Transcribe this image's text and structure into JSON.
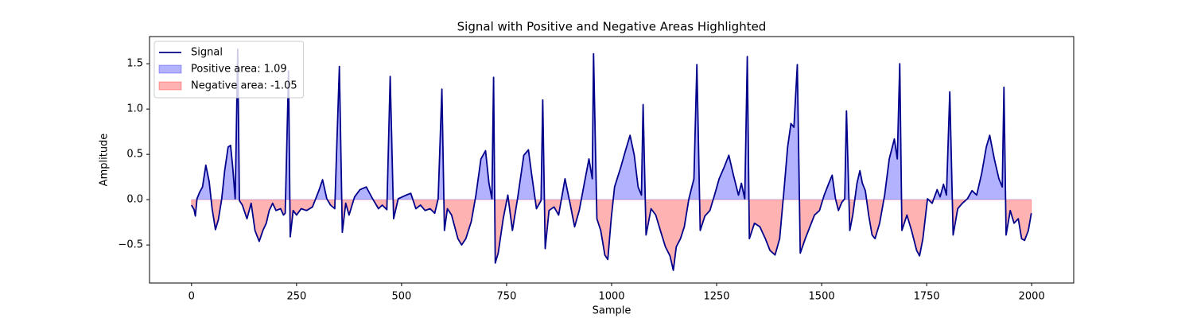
{
  "chart_data": {
    "type": "line",
    "title": "Signal with Positive and Negative Areas Highlighted",
    "xlabel": "Sample",
    "ylabel": "Amplitude",
    "x": [
      0,
      6,
      9,
      13,
      19,
      26,
      34,
      42,
      49,
      57,
      64,
      72,
      79,
      87,
      93,
      98,
      104,
      110,
      114,
      121,
      132,
      142,
      151,
      161,
      170,
      178,
      185,
      193,
      201,
      212,
      219,
      223,
      231,
      235,
      242,
      250,
      261,
      274,
      288,
      303,
      312,
      322,
      331,
      341,
      352,
      359,
      367,
      375,
      388,
      401,
      416,
      431,
      445,
      454,
      465,
      473,
      481,
      492,
      511,
      522,
      534,
      545,
      556,
      568,
      579,
      587,
      596,
      602,
      609,
      619,
      634,
      643,
      653,
      666,
      677,
      689,
      700,
      708,
      715,
      719,
      723,
      730,
      742,
      753,
      764,
      776,
      791,
      802,
      810,
      821,
      832,
      836,
      842,
      851,
      863,
      874,
      889,
      901,
      912,
      923,
      935,
      946,
      954,
      957,
      965,
      974,
      984,
      991,
      999,
      1007,
      1022,
      1033,
      1044,
      1054,
      1063,
      1071,
      1075,
      1082,
      1094,
      1105,
      1116,
      1128,
      1139,
      1147,
      1154,
      1164,
      1173,
      1184,
      1196,
      1203,
      1211,
      1222,
      1234,
      1245,
      1256,
      1268,
      1279,
      1290,
      1302,
      1309,
      1317,
      1323,
      1328,
      1340,
      1353,
      1366,
      1377,
      1389,
      1400,
      1411,
      1419,
      1427,
      1434,
      1442,
      1449,
      1461,
      1472,
      1483,
      1495,
      1506,
      1517,
      1525,
      1533,
      1540,
      1548,
      1555,
      1559,
      1567,
      1574,
      1584,
      1591,
      1597,
      1604,
      1612,
      1620,
      1627,
      1638,
      1650,
      1661,
      1673,
      1680,
      1686,
      1691,
      1703,
      1714,
      1726,
      1733,
      1741,
      1752,
      1763,
      1775,
      1782,
      1790,
      1797,
      1805,
      1813,
      1824,
      1835,
      1847,
      1858,
      1869,
      1881,
      1892,
      1900,
      1911,
      1922,
      1930,
      1934,
      1939,
      1949,
      1958,
      1968,
      1976,
      1983,
      1992,
      1999
    ],
    "series": [
      {
        "name": "Signal",
        "color": "#00008b",
        "values": [
          -0.06,
          -0.11,
          -0.18,
          0.01,
          0.08,
          0.14,
          0.38,
          0.2,
          -0.1,
          -0.33,
          -0.22,
          0.01,
          0.32,
          0.58,
          0.6,
          0.36,
          0.01,
          1.66,
          -0.01,
          -0.06,
          -0.21,
          -0.04,
          -0.34,
          -0.46,
          -0.34,
          -0.26,
          -0.12,
          -0.04,
          -0.12,
          -0.1,
          -0.17,
          -0.15,
          1.42,
          -0.41,
          -0.12,
          -0.17,
          -0.1,
          -0.12,
          -0.08,
          0.1,
          0.22,
          0.01,
          -0.06,
          -0.1,
          1.47,
          -0.36,
          -0.04,
          -0.17,
          0.03,
          0.11,
          0.14,
          0.01,
          -0.1,
          -0.06,
          -0.11,
          1.36,
          -0.21,
          0.01,
          0.05,
          0.07,
          -0.1,
          -0.06,
          -0.12,
          -0.1,
          -0.15,
          0.01,
          1.22,
          -0.34,
          -0.1,
          -0.17,
          -0.43,
          -0.5,
          -0.43,
          -0.24,
          0.05,
          0.45,
          0.54,
          0.18,
          0.01,
          1.35,
          -0.7,
          -0.59,
          -0.21,
          0.05,
          -0.34,
          0.01,
          0.49,
          0.55,
          0.27,
          -0.1,
          -0.01,
          1.1,
          -0.54,
          -0.12,
          -0.08,
          -0.17,
          0.23,
          -0.04,
          -0.3,
          -0.12,
          0.18,
          0.45,
          0.23,
          1.61,
          -0.21,
          -0.34,
          -0.61,
          -0.66,
          -0.21,
          0.14,
          0.36,
          0.54,
          0.71,
          0.49,
          0.14,
          0.05,
          1.05,
          -0.39,
          -0.1,
          -0.17,
          -0.34,
          -0.52,
          -0.62,
          -0.78,
          -0.52,
          -0.43,
          -0.3,
          0.01,
          0.23,
          1.49,
          -0.34,
          -0.18,
          -0.12,
          0.05,
          0.23,
          0.36,
          0.49,
          0.27,
          0.05,
          0.18,
          0.01,
          1.58,
          -0.43,
          -0.26,
          -0.3,
          -0.43,
          -0.56,
          -0.61,
          -0.43,
          0.14,
          0.58,
          0.84,
          0.8,
          1.49,
          -0.59,
          -0.43,
          -0.3,
          -0.17,
          -0.12,
          0.05,
          0.18,
          0.27,
          0.01,
          -0.12,
          -0.03,
          0.01,
          0.98,
          -0.34,
          -0.17,
          0.18,
          0.32,
          0.18,
          0.1,
          -0.17,
          -0.39,
          -0.43,
          -0.26,
          0.05,
          0.45,
          0.67,
          0.45,
          1.5,
          -0.34,
          -0.17,
          -0.34,
          -0.56,
          -0.62,
          -0.43,
          0.01,
          -0.04,
          0.11,
          0.03,
          0.17,
          0.05,
          1.19,
          -0.39,
          -0.1,
          -0.04,
          0.01,
          0.1,
          0.05,
          0.29,
          0.58,
          0.71,
          0.45,
          0.23,
          0.14,
          1.24,
          -0.39,
          -0.12,
          -0.26,
          -0.21,
          -0.43,
          -0.45,
          -0.34,
          -0.15
        ]
      }
    ],
    "areas": [
      {
        "name": "Positive area: 1.09",
        "color": "#0000ff"
      },
      {
        "name": "Negative area: -1.05",
        "color": "#ff0000"
      }
    ],
    "xlim": [
      -100,
      2100
    ],
    "xticks": [
      0,
      250,
      500,
      750,
      1000,
      1250,
      1500,
      1750,
      2000
    ],
    "ylim": [
      -0.92,
      1.8
    ],
    "yticks": [
      {
        "value": -0.5,
        "label": "−0.5"
      },
      {
        "value": 0,
        "label": "0.0"
      },
      {
        "value": 0.5,
        "label": "0.5"
      },
      {
        "value": 1,
        "label": "1.0"
      },
      {
        "value": 1.5,
        "label": "1.5"
      }
    ],
    "legend": "upper left"
  }
}
